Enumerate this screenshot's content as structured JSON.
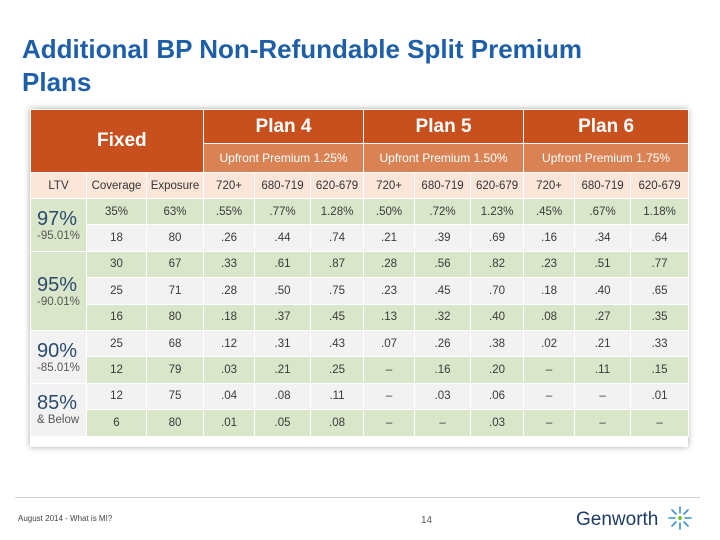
{
  "slide": {
    "title": "Additional BP Non-Refundable Split Premium Plans"
  },
  "table": {
    "fixed_label": "Fixed",
    "plans": [
      {
        "name": "Plan 4",
        "premium": "Upfront Premium 1.25%"
      },
      {
        "name": "Plan 5",
        "premium": "Upfront Premium 1.50%"
      },
      {
        "name": "Plan 6",
        "premium": "Upfront Premium 1.75%"
      }
    ],
    "columns": [
      "LTV",
      "Coverage",
      "Exposure",
      "720+",
      "680-719",
      "620-679",
      "720+",
      "680-719",
      "620-679",
      "720+",
      "680-719",
      "620-679"
    ],
    "groups": [
      {
        "ltv": "97%",
        "range": "-95.01%",
        "rows": [
          [
            "35%",
            "63%",
            ".55%",
            ".77%",
            "1.28%",
            ".50%",
            ".72%",
            "1.23%",
            ".45%",
            ".67%",
            "1.18%"
          ],
          [
            "18",
            "80",
            ".26",
            ".44",
            ".74",
            ".21",
            ".39",
            ".69",
            ".16",
            ".34",
            ".64"
          ]
        ]
      },
      {
        "ltv": "95%",
        "range": "-90.01%",
        "rows": [
          [
            "30",
            "67",
            ".33",
            ".61",
            ".87",
            ".28",
            ".56",
            ".82",
            ".23",
            ".51",
            ".77"
          ],
          [
            "25",
            "71",
            ".28",
            ".50",
            ".75",
            ".23",
            ".45",
            ".70",
            ".18",
            ".40",
            ".65"
          ],
          [
            "16",
            "80",
            ".18",
            ".37",
            ".45",
            ".13",
            ".32",
            ".40",
            ".08",
            ".27",
            ".35"
          ]
        ]
      },
      {
        "ltv": "90%",
        "range": "-85.01%",
        "rows": [
          [
            "25",
            "68",
            ".12",
            ".31",
            ".43",
            ".07",
            ".26",
            ".38",
            ".02",
            ".21",
            ".33"
          ],
          [
            "12",
            "79",
            ".03",
            ".21",
            ".25",
            "–",
            ".16",
            ".20",
            "–",
            ".11",
            ".15"
          ]
        ]
      },
      {
        "ltv": "85%",
        "range": "& Below",
        "rows": [
          [
            "12",
            "75",
            ".04",
            ".08",
            ".11",
            "–",
            ".03",
            ".06",
            "–",
            "–",
            ".01"
          ],
          [
            "6",
            "80",
            ".01",
            ".05",
            ".08",
            "–",
            "–",
            ".03",
            "–",
            "–",
            "–"
          ]
        ]
      }
    ]
  },
  "footer": {
    "text": "August 2014 - What is MI?",
    "page_number": "14",
    "logo_text": "Genworth"
  }
}
